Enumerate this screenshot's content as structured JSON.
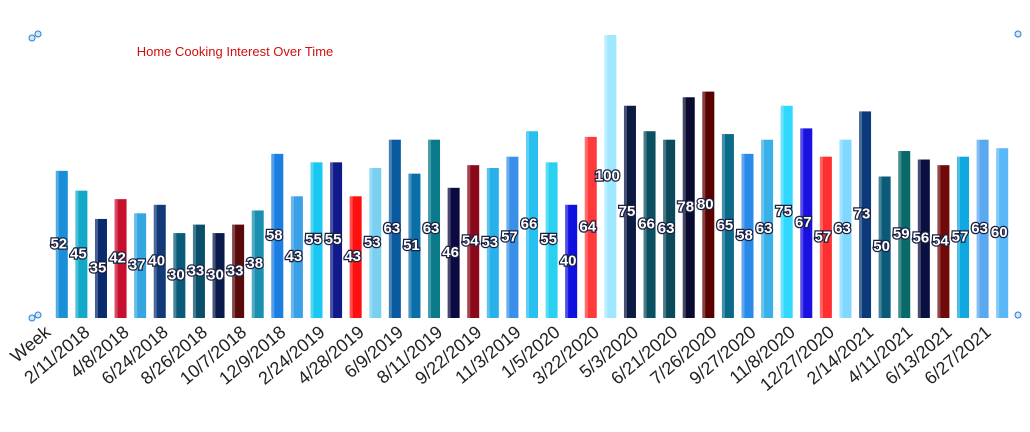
{
  "chart_data": {
    "type": "bar",
    "title": "Home Cooking Interest Over Time",
    "categories": [
      "Week",
      null,
      "2/11/2018",
      null,
      "4/8/2018",
      null,
      "6/24/2018",
      null,
      "8/26/2018",
      null,
      "10/7/2018",
      null,
      "12/9/2018",
      null,
      "2/24/2019",
      null,
      "4/28/2019",
      null,
      "6/9/2019",
      null,
      "8/11/2019",
      null,
      "9/22/2019",
      null,
      "11/3/2019",
      null,
      "1/5/2020",
      null,
      "3/22/2020",
      null,
      "5/3/2020",
      null,
      "6/21/2020",
      null,
      "7/26/2020",
      null,
      "9/27/2020",
      null,
      "11/8/2020",
      null,
      "12/27/2020",
      null,
      "2/14/2021",
      null,
      "4/11/2021",
      null,
      "6/13/2021",
      null,
      "6/27/2021"
    ],
    "values": [
      52,
      45,
      35,
      42,
      37,
      40,
      30,
      33,
      30,
      33,
      38,
      58,
      43,
      55,
      55,
      43,
      53,
      63,
      51,
      63,
      46,
      54,
      53,
      57,
      66,
      55,
      40,
      64,
      100,
      75,
      66,
      63,
      78,
      80,
      65,
      58,
      63,
      75,
      67,
      57,
      63,
      73,
      50,
      59,
      56,
      54,
      57,
      63,
      60
    ],
    "colors": [
      "#1a8fd8",
      "#12a9c9",
      "#0a2a6e",
      "#c8102e",
      "#35a6e0",
      "#123a78",
      "#0a5a7a",
      "#0a4f6a",
      "#0a1a4a",
      "#5a0a0a",
      "#1a8fb0",
      "#1a7fe0",
      "#3aa0e8",
      "#18c8f0",
      "#101a8a",
      "#ff1010",
      "#7ad0f0",
      "#0a5aa0",
      "#0a6fa8",
      "#0a7a8a",
      "#0a0a40",
      "#8a0a1a",
      "#28b0e8",
      "#3a90e8",
      "#28c0f0",
      "#2ad0f0",
      "#1010e0",
      "#ff3a3a",
      "#a0e8ff",
      "#0a1a40",
      "#0a5060",
      "#0a4a5a",
      "#0a0a30",
      "#5a0000",
      "#0a6a8a",
      "#2a8ae8",
      "#3ab0e8",
      "#30d8ff",
      "#1a10e0",
      "#ff3030",
      "#80d8ff",
      "#0a3a7a",
      "#0a5a7a",
      "#0a6a6a",
      "#0a1040",
      "#700a0a",
      "#10a8e0",
      "#5aa8f0",
      "#5ab8f8"
    ],
    "ylim": [
      0,
      100
    ]
  }
}
